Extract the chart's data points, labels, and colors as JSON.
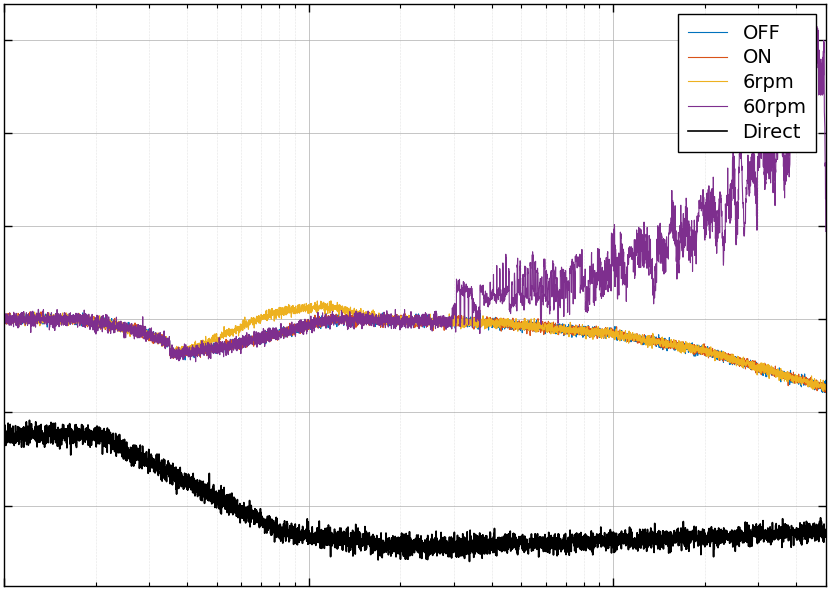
{
  "legend_labels": [
    "OFF",
    "ON",
    "6rpm",
    "60rpm",
    "Direct"
  ],
  "colors": [
    "#0072BD",
    "#D95319",
    "#EDB120",
    "#7E2F8E",
    "#000000"
  ],
  "linewidths": [
    0.8,
    0.8,
    0.8,
    0.8,
    1.2
  ],
  "background_color": "#FFFFFF",
  "grid_color": "#AAAAAA",
  "figsize": [
    8.3,
    5.9
  ],
  "dpi": 100,
  "n_points": 5000,
  "freq_min": 1,
  "freq_max": 500
}
